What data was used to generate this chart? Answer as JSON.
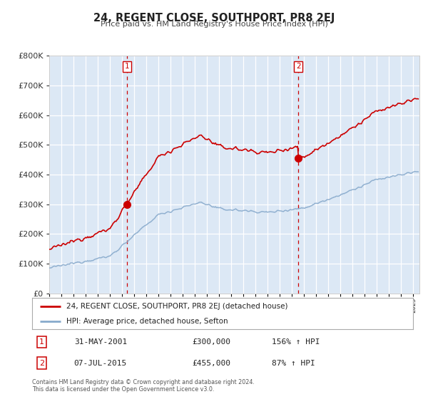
{
  "title": "24, REGENT CLOSE, SOUTHPORT, PR8 2EJ",
  "subtitle": "Price paid vs. HM Land Registry's House Price Index (HPI)",
  "legend_line1": "24, REGENT CLOSE, SOUTHPORT, PR8 2EJ (detached house)",
  "legend_line2": "HPI: Average price, detached house, Sefton",
  "annotation1_label": "1",
  "annotation1_date": "31-MAY-2001",
  "annotation1_price": "£300,000",
  "annotation1_hpi": "156% ↑ HPI",
  "annotation2_label": "2",
  "annotation2_date": "07-JUL-2015",
  "annotation2_price": "£455,000",
  "annotation2_hpi": "87% ↑ HPI",
  "footnote1": "Contains HM Land Registry data © Crown copyright and database right 2024.",
  "footnote2": "This data is licensed under the Open Government Licence v3.0.",
  "sale1_year": 2001.42,
  "sale1_price": 300000,
  "sale2_year": 2015.52,
  "sale2_price": 455000,
  "red_line_color": "#cc0000",
  "blue_line_color": "#88aacc",
  "background_color": "#dce8f5",
  "plot_bg_color": "#ffffff",
  "ylim_min": 0,
  "ylim_max": 800000,
  "xmin": 1995.0,
  "xmax": 2025.5,
  "vline_color": "#cc0000",
  "marker_color": "#cc0000",
  "grid_color": "#ffffff",
  "marker_size": 7
}
